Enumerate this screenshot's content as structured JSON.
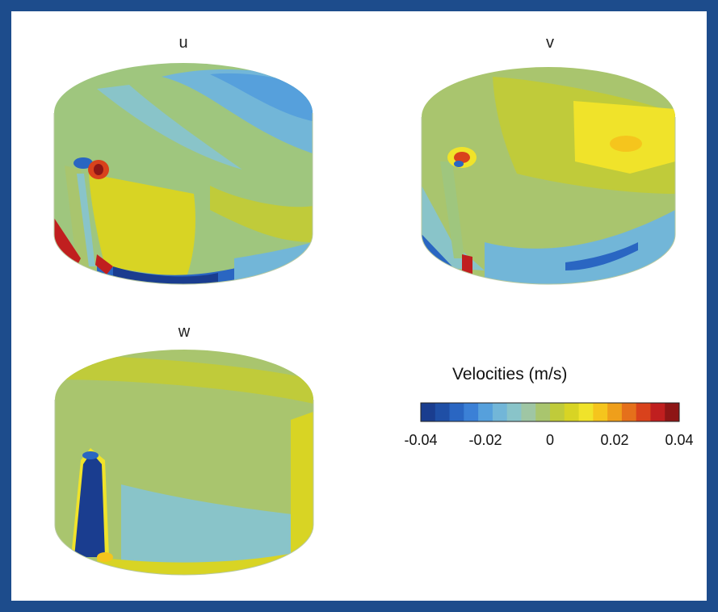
{
  "plots": [
    {
      "label": "u"
    },
    {
      "label": "v"
    },
    {
      "label": "w"
    }
  ],
  "colorbar": {
    "title": "Velocities (m/s)",
    "tick_labels": [
      "-0.04",
      "-0.02",
      "0",
      "0.02",
      "0.04"
    ],
    "range": [
      -0.04,
      0.04
    ],
    "colors": [
      "#1a3d8f",
      "#1f4fa6",
      "#2a66c2",
      "#3b80d6",
      "#56a0dc",
      "#72b6d8",
      "#89c4c9",
      "#9fc6a4",
      "#a9c56e",
      "#c0cb3a",
      "#d8d424",
      "#f0e32a",
      "#f5c51d",
      "#ef9f1b",
      "#e5701b",
      "#d9421c",
      "#c01f1f",
      "#8e1616"
    ]
  },
  "colors": {
    "frame": "#1d4c8c",
    "background": "#ffffff"
  }
}
